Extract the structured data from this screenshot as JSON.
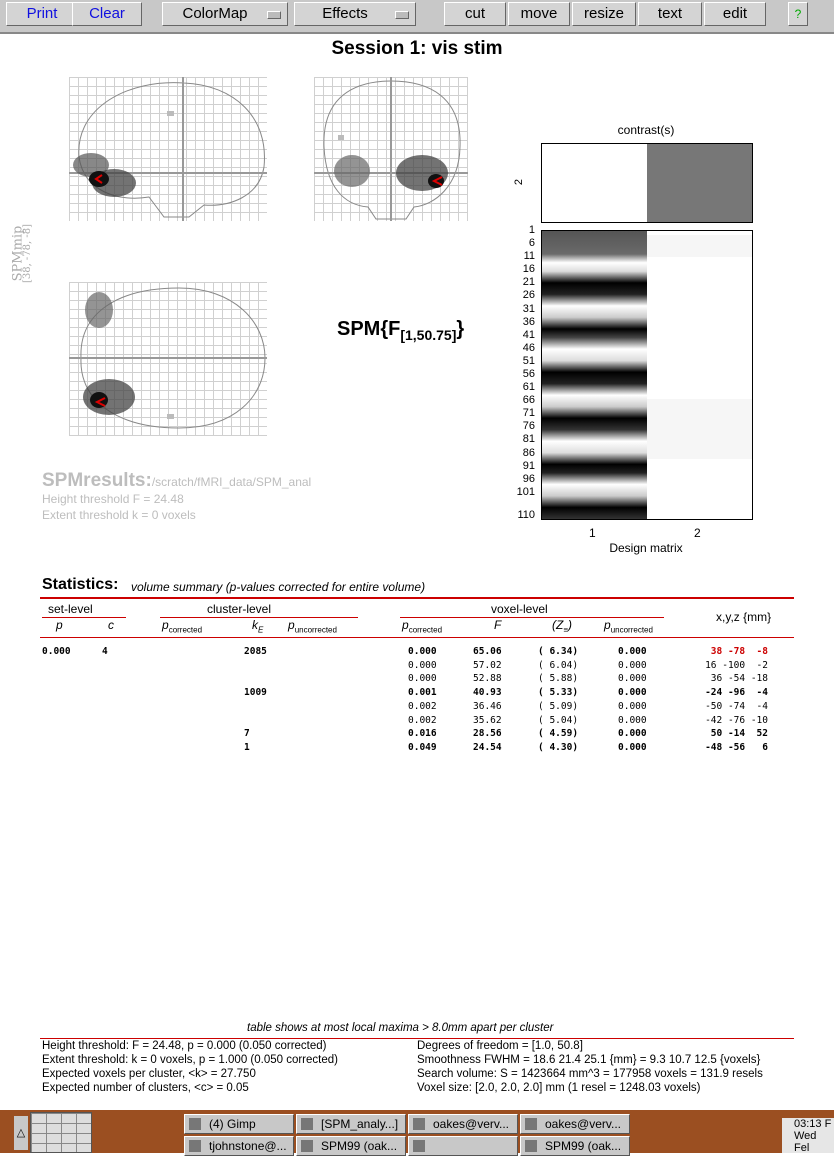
{
  "toolbar": {
    "print": "Print",
    "clear": "Clear",
    "colormap": "ColorMap",
    "effects": "Effects",
    "cut": "cut",
    "move": "move",
    "resize": "resize",
    "text": "text",
    "edit": "edit",
    "help": "?"
  },
  "title": "Session 1: vis stim",
  "mip": {
    "label": "SPMmip",
    "coords": "[38, -78, -8]"
  },
  "spm_stat": {
    "main": "SPM{F",
    "sub": "[1,50.75]",
    "close": "}"
  },
  "results": {
    "title": "SPMresults:",
    "path": "/scratch/fMRI_data/SPM_anal",
    "height": "Height threshold F = 24.48",
    "extent": "Extent threshold k = 0 voxels"
  },
  "contrast": {
    "title": "contrast(s)",
    "index": "2"
  },
  "design_matrix": {
    "xlabel": "Design matrix",
    "row_ticks": [
      "1",
      "6",
      "11",
      "16",
      "21",
      "26",
      "31",
      "36",
      "41",
      "46",
      "51",
      "56",
      "61",
      "66",
      "71",
      "76",
      "81",
      "86",
      "91",
      "96",
      "101",
      "110"
    ],
    "col_ticks": [
      "1",
      "2"
    ]
  },
  "stats": {
    "heading": "Statistics:",
    "subtitle": "volume summary (p-values corrected for entire volume)",
    "groups": {
      "set": "set-level",
      "cluster": "cluster-level",
      "voxel": "voxel-level",
      "xyz": "x,y,z {mm}"
    },
    "columns": {
      "set_p": "p",
      "set_c": "c",
      "p_corr": "p",
      "p_corr_sub": "corrected",
      "kE": "k",
      "kE_sub": "E",
      "p_unc": "p",
      "p_unc_sub": "uncorrected",
      "vp_corr": "p",
      "vp_corr_sub": "corrected",
      "F": "F",
      "Z": "(Z",
      "Z_sub": "≡",
      "Z_close": ")",
      "vp_unc": "p",
      "vp_unc_sub": "uncorrected"
    },
    "rows": [
      {
        "set_p": "0.000",
        "set_c": "4",
        "p_corr": "",
        "kE": "2085",
        "p_unc": "",
        "vp_corr": "0.000",
        "F": "65.06",
        "Z": "( 6.34)",
        "vp_unc": "0.000",
        "xyz": "38 -78  -8",
        "bold": true,
        "highlight": true
      },
      {
        "set_p": "",
        "set_c": "",
        "p_corr": "",
        "kE": "",
        "p_unc": "",
        "vp_corr": "0.000",
        "F": "57.02",
        "Z": "( 6.04)",
        "vp_unc": "0.000",
        "xyz": "16 -100  -2",
        "bold": false
      },
      {
        "set_p": "",
        "set_c": "",
        "p_corr": "",
        "kE": "",
        "p_unc": "",
        "vp_corr": "0.000",
        "F": "52.88",
        "Z": "( 5.88)",
        "vp_unc": "0.000",
        "xyz": "36 -54 -18",
        "bold": false
      },
      {
        "set_p": "",
        "set_c": "",
        "p_corr": "",
        "kE": "1009",
        "p_unc": "",
        "vp_corr": "0.001",
        "F": "40.93",
        "Z": "( 5.33)",
        "vp_unc": "0.000",
        "xyz": "-24 -96  -4",
        "bold": true
      },
      {
        "set_p": "",
        "set_c": "",
        "p_corr": "",
        "kE": "",
        "p_unc": "",
        "vp_corr": "0.002",
        "F": "36.46",
        "Z": "( 5.09)",
        "vp_unc": "0.000",
        "xyz": "-50 -74  -4",
        "bold": false
      },
      {
        "set_p": "",
        "set_c": "",
        "p_corr": "",
        "kE": "",
        "p_unc": "",
        "vp_corr": "0.002",
        "F": "35.62",
        "Z": "( 5.04)",
        "vp_unc": "0.000",
        "xyz": "-42 -76 -10",
        "bold": false
      },
      {
        "set_p": "",
        "set_c": "",
        "p_corr": "",
        "kE": "7",
        "p_unc": "",
        "vp_corr": "0.016",
        "F": "28.56",
        "Z": "( 4.59)",
        "vp_unc": "0.000",
        "xyz": "50 -14  52",
        "bold": true
      },
      {
        "set_p": "",
        "set_c": "",
        "p_corr": "",
        "kE": "1",
        "p_unc": "",
        "vp_corr": "0.049",
        "F": "24.54",
        "Z": "( 4.30)",
        "vp_unc": "0.000",
        "xyz": "-48 -56   6",
        "bold": true
      }
    ]
  },
  "footer": {
    "note": "table shows at most   local maxima > 8.0mm apart per cluster",
    "left": [
      "Height threshold: F = 24.48, p = 0.000 (0.050 corrected)",
      "Extent threshold: k = 0 voxels, p = 1.000 (0.050 corrected)",
      "Expected voxels per cluster, <k> = 27.750",
      "Expected number of clusters, <c> = 0.05"
    ],
    "right": [
      "Degrees of freedom = [1.0, 50.8]",
      "Smoothness FWHM = 18.6 21.4 25.1 {mm}  = 9.3 10.7 12.5 {voxels}",
      "Search volume: S = 1423664 mm^3 = 177958 voxels = 131.9 resels",
      "Voxel size: [2.0, 2.0, 2.0] mm  (1 resel = 1248.03 voxels)"
    ]
  },
  "taskbar": {
    "tasks": [
      {
        "label": "(4) Gimp"
      },
      {
        "label": "[SPM_analy...]"
      },
      {
        "label": "oakes@verv..."
      },
      {
        "label": "oakes@verv..."
      },
      {
        "label": "tjohnstone@..."
      },
      {
        "label": "SPM99 (oak..."
      },
      {
        "label": ""
      },
      {
        "label": "SPM99 (oak..."
      }
    ],
    "clock_time": "03:13 F",
    "clock_date": "Wed Fel"
  },
  "colors": {
    "accent_red": "#cc0000",
    "taskbar": "#9b4f21",
    "toolbar": "#c8c8c8",
    "button_text": "#1010e0"
  }
}
